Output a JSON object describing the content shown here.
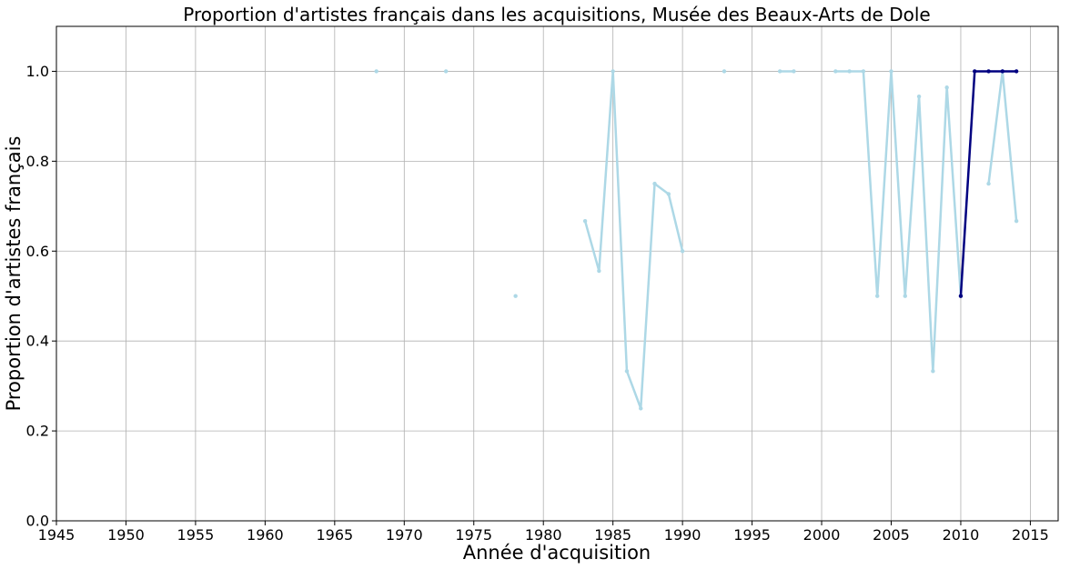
{
  "chart_data": {
    "type": "line",
    "title": "Proportion d'artistes français dans les acquisitions, Musée des Beaux-Arts de Dole",
    "xlabel": "Année d'acquisition",
    "ylabel": "Proportion d'artistes français",
    "xlim": [
      1945,
      2017
    ],
    "ylim": [
      0,
      1.1
    ],
    "xticks": [
      "1945",
      "1950",
      "1955",
      "1960",
      "1965",
      "1970",
      "1975",
      "1980",
      "1985",
      "1990",
      "1995",
      "2000",
      "2005",
      "2010",
      "2015"
    ],
    "yticks": [
      "0.0",
      "0.2",
      "0.4",
      "0.6",
      "0.8",
      "1.0"
    ],
    "grid": true,
    "series": [
      {
        "color": "#add8e6",
        "points": [
          [
            1968,
            1.0
          ],
          [
            1969,
            null
          ],
          [
            1973,
            1.0
          ],
          [
            1974,
            null
          ],
          [
            1978,
            0.5
          ],
          [
            1979,
            null
          ],
          [
            1983,
            0.667
          ],
          [
            1984,
            0.556
          ],
          [
            1985,
            1.0
          ],
          [
            1986,
            0.333
          ],
          [
            1987,
            0.25
          ],
          [
            1988,
            0.75
          ],
          [
            1989,
            0.727
          ],
          [
            1990,
            0.6
          ],
          [
            1991,
            null
          ],
          [
            1993,
            1.0
          ],
          [
            1994,
            null
          ],
          [
            1997,
            1.0
          ],
          [
            1998,
            1.0
          ],
          [
            1999,
            null
          ],
          [
            2001,
            1.0
          ],
          [
            2002,
            1.0
          ],
          [
            2003,
            1.0
          ],
          [
            2004,
            0.5
          ],
          [
            2005,
            1.0
          ],
          [
            2006,
            0.5
          ],
          [
            2007,
            0.944
          ],
          [
            2008,
            0.333
          ],
          [
            2009,
            0.964
          ],
          [
            2010,
            0.5
          ],
          [
            2011,
            null
          ],
          [
            2012,
            0.75
          ],
          [
            2013,
            1.0
          ],
          [
            2014,
            0.667
          ]
        ]
      },
      {
        "color": "#000080",
        "points": [
          [
            2010,
            0.5
          ],
          [
            2011,
            1.0
          ],
          [
            2012,
            1.0
          ],
          [
            2013,
            1.0
          ],
          [
            2014,
            1.0
          ]
        ]
      }
    ]
  }
}
